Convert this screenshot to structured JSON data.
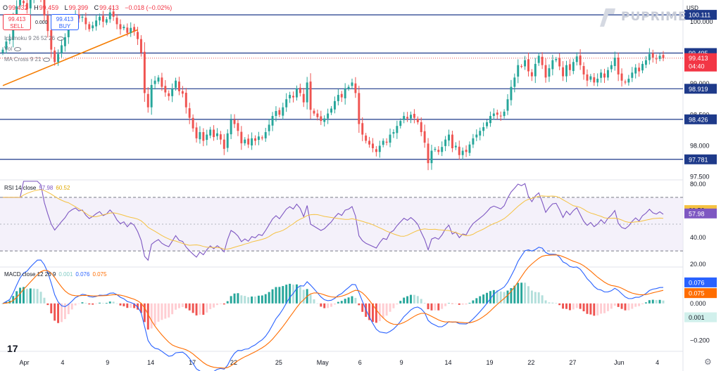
{
  "ohlc": {
    "open_label": "O",
    "open": "99.432",
    "high_label": "H",
    "high": "99.459",
    "low_label": "L",
    "low": "99.399",
    "close_label": "C",
    "close": "99.413",
    "change": "−0.018 (−0.02%)"
  },
  "trade": {
    "sell_price": "99.413",
    "sell_label": "SELL",
    "buy_price": "99.413",
    "buy_label": "BUY",
    "spread": "0.000"
  },
  "indicators": {
    "ichimoku": "Ichimoku 9 26 52 26",
    "vol": "Vol",
    "ma_cross": "MA Cross 9 21"
  },
  "currency": "USD",
  "brand": "PUPRIME",
  "tv_logo": "17",
  "colors": {
    "up": "#26a69a",
    "down": "#ef5350",
    "hline": "#1e3a8a",
    "trend": "#f57c00",
    "rsi": "#7e57c2",
    "rsi_ma": "#f5c242",
    "macd": "#2962ff",
    "signal": "#ff6d00"
  },
  "chart_data": [
    {
      "type": "candlestick",
      "title": "",
      "ylim": [
        97.45,
        100.35
      ],
      "y_ticks": [
        "100.000",
        "99.000",
        "98.500",
        "98.000",
        "97.500"
      ],
      "x_ticks": [
        "Apr",
        "4",
        "9",
        "14",
        "17",
        "22",
        "25",
        "May",
        "6",
        "9",
        "14",
        "19",
        "22",
        "27",
        "Jun",
        "4"
      ],
      "horizontal_levels": [
        {
          "label": "100.111",
          "value": 100.111
        },
        {
          "label": "99.495",
          "value": 99.495
        },
        {
          "label": "98.919",
          "value": 98.919
        },
        {
          "label": "98.426",
          "value": 98.426
        },
        {
          "label": "97.781",
          "value": 97.781
        }
      ],
      "last_price": {
        "label": "99.413",
        "countdown": "04:40",
        "value": 99.413
      },
      "trendline": {
        "from": {
          "bar": 0,
          "value": 98.97
        },
        "to": {
          "bar": 39,
          "value": 99.87
        }
      },
      "closes": [
        99.55,
        99.68,
        99.72,
        100.05,
        100.25,
        100.35,
        100.3,
        100.2,
        100.4,
        100.45,
        100.52,
        100.38,
        100.1,
        99.85,
        99.55,
        99.35,
        99.48,
        99.62,
        99.75,
        99.95,
        100.05,
        100.12,
        100.05,
        100.08,
        99.96,
        99.88,
        99.94,
        100.02,
        100.08,
        100.0,
        100.04,
        100.15,
        100.08,
        99.96,
        99.88,
        99.92,
        99.82,
        99.9,
        99.85,
        99.72,
        99.5,
        98.85,
        98.62,
        98.98,
        99.05,
        99.1,
        98.95,
        98.86,
        98.8,
        98.92,
        99.05,
        98.88,
        98.84,
        98.62,
        98.45,
        98.28,
        98.12,
        98.22,
        98.08,
        98.18,
        98.26,
        98.14,
        98.2,
        98.1,
        97.95,
        98.2,
        98.42,
        98.35,
        98.24,
        98.04,
        98.1,
        98.02,
        98.12,
        98.08,
        98.15,
        98.12,
        98.22,
        98.34,
        98.48,
        98.56,
        98.5,
        98.62,
        98.75,
        98.82,
        98.78,
        98.92,
        98.85,
        98.7,
        99.02,
        98.58,
        98.52,
        98.46,
        98.4,
        98.44,
        98.52,
        98.6,
        98.72,
        98.82,
        98.78,
        98.92,
        98.95,
        99.02,
        98.85,
        98.35,
        98.18,
        98.08,
        98.02,
        97.96,
        97.9,
        98.0,
        98.08,
        98.05,
        98.18,
        98.22,
        98.32,
        98.4,
        98.48,
        98.44,
        98.5,
        98.45,
        98.38,
        98.22,
        98.05,
        97.72,
        97.92,
        97.95,
        97.9,
        97.98,
        98.1,
        98.18,
        97.96,
        98.0,
        97.85,
        97.92,
        97.9,
        98.02,
        98.12,
        98.18,
        98.24,
        98.3,
        98.38,
        98.48,
        98.52,
        98.5,
        98.48,
        98.55,
        98.75,
        98.95,
        99.1,
        99.3,
        99.28,
        99.38,
        99.2,
        99.12,
        99.32,
        99.45,
        99.3,
        99.1,
        99.25,
        99.38,
        99.4,
        99.28,
        99.12,
        99.3,
        99.22,
        99.35,
        99.44,
        99.3,
        99.15,
        99.05,
        99.12,
        99.02,
        99.08,
        99.18,
        99.1,
        99.22,
        99.3,
        99.42,
        99.15,
        99.05,
        99.02,
        99.08,
        99.18,
        99.26,
        99.2,
        99.32,
        99.38,
        99.48,
        99.42,
        99.4,
        99.45,
        99.413
      ],
      "rsi": {
        "legend": "RSI 14 close",
        "value": "57.98",
        "ma_value": "60.52",
        "ylim": [
          18,
          82
        ],
        "ticks": [
          "80.00",
          "40.00",
          "20.00"
        ],
        "band": [
          30,
          70
        ]
      },
      "macd": {
        "legend": "MACD close 12 26 9",
        "histogram": "0.001",
        "macd": "0.076",
        "signal": "0.075",
        "ticks": [
          "0.000",
          "−0.200"
        ],
        "ylim": [
          -0.26,
          0.19
        ]
      }
    }
  ]
}
